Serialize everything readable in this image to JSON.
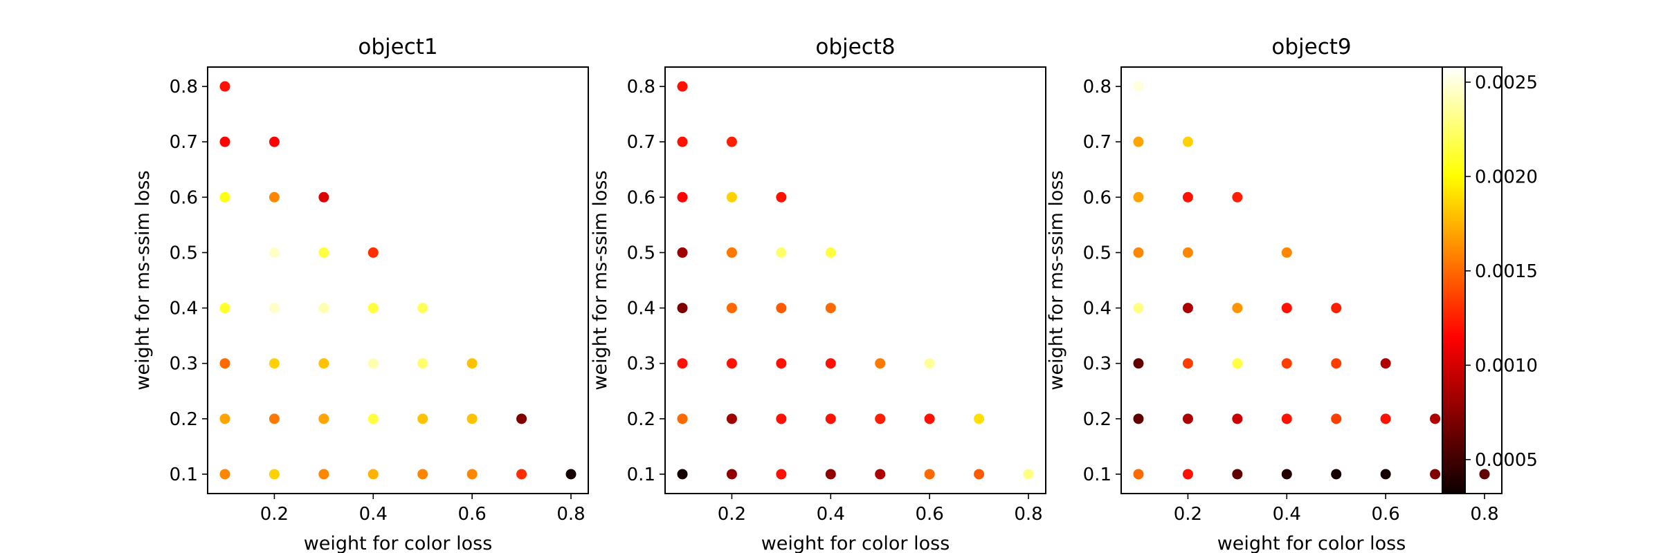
{
  "chart_data": [
    {
      "type": "scatter",
      "title": "object1",
      "xlabel": "weight for color loss",
      "ylabel": "weight for ms-ssim loss",
      "xticks": [
        "0.2",
        "0.4",
        "0.6",
        "0.8"
      ],
      "yticks": [
        "0.1",
        "0.2",
        "0.3",
        "0.4",
        "0.5",
        "0.6",
        "0.7",
        "0.8"
      ],
      "xlim": [
        0.065,
        0.835
      ],
      "ylim": [
        0.065,
        0.835
      ],
      "points": [
        {
          "x": 0.1,
          "y": 0.8,
          "c": 0.0012
        },
        {
          "x": 0.1,
          "y": 0.7,
          "c": 0.00115
        },
        {
          "x": 0.2,
          "y": 0.7,
          "c": 0.00115
        },
        {
          "x": 0.1,
          "y": 0.6,
          "c": 0.00205
        },
        {
          "x": 0.2,
          "y": 0.6,
          "c": 0.0016
        },
        {
          "x": 0.3,
          "y": 0.6,
          "c": 0.001
        },
        {
          "x": 0.2,
          "y": 0.5,
          "c": 0.00245
        },
        {
          "x": 0.3,
          "y": 0.5,
          "c": 0.00215
        },
        {
          "x": 0.4,
          "y": 0.5,
          "c": 0.0013
        },
        {
          "x": 0.1,
          "y": 0.4,
          "c": 0.0021
        },
        {
          "x": 0.2,
          "y": 0.4,
          "c": 0.00245
        },
        {
          "x": 0.3,
          "y": 0.4,
          "c": 0.0024
        },
        {
          "x": 0.4,
          "y": 0.4,
          "c": 0.00215
        },
        {
          "x": 0.5,
          "y": 0.4,
          "c": 0.0022
        },
        {
          "x": 0.1,
          "y": 0.3,
          "c": 0.0015
        },
        {
          "x": 0.2,
          "y": 0.3,
          "c": 0.00185
        },
        {
          "x": 0.3,
          "y": 0.3,
          "c": 0.0018
        },
        {
          "x": 0.4,
          "y": 0.3,
          "c": 0.0024
        },
        {
          "x": 0.5,
          "y": 0.3,
          "c": 0.00225
        },
        {
          "x": 0.6,
          "y": 0.3,
          "c": 0.0018
        },
        {
          "x": 0.1,
          "y": 0.2,
          "c": 0.0017
        },
        {
          "x": 0.2,
          "y": 0.2,
          "c": 0.00155
        },
        {
          "x": 0.3,
          "y": 0.2,
          "c": 0.0017
        },
        {
          "x": 0.4,
          "y": 0.2,
          "c": 0.00215
        },
        {
          "x": 0.5,
          "y": 0.2,
          "c": 0.0018
        },
        {
          "x": 0.6,
          "y": 0.2,
          "c": 0.0018
        },
        {
          "x": 0.7,
          "y": 0.2,
          "c": 0.0007
        },
        {
          "x": 0.1,
          "y": 0.1,
          "c": 0.0016
        },
        {
          "x": 0.2,
          "y": 0.1,
          "c": 0.00185
        },
        {
          "x": 0.3,
          "y": 0.1,
          "c": 0.0016
        },
        {
          "x": 0.4,
          "y": 0.1,
          "c": 0.00175
        },
        {
          "x": 0.5,
          "y": 0.1,
          "c": 0.0016
        },
        {
          "x": 0.6,
          "y": 0.1,
          "c": 0.0016
        },
        {
          "x": 0.7,
          "y": 0.1,
          "c": 0.0013
        },
        {
          "x": 0.8,
          "y": 0.1,
          "c": 0.00035
        }
      ]
    },
    {
      "type": "scatter",
      "title": "object8",
      "xlabel": "weight for color loss",
      "ylabel": "weight for ms-ssim loss",
      "xticks": [
        "0.2",
        "0.4",
        "0.6",
        "0.8"
      ],
      "yticks": [
        "0.1",
        "0.2",
        "0.3",
        "0.4",
        "0.5",
        "0.6",
        "0.7",
        "0.8"
      ],
      "xlim": [
        0.065,
        0.835
      ],
      "ylim": [
        0.065,
        0.835
      ],
      "points": [
        {
          "x": 0.1,
          "y": 0.8,
          "c": 0.0012
        },
        {
          "x": 0.1,
          "y": 0.7,
          "c": 0.0012
        },
        {
          "x": 0.2,
          "y": 0.7,
          "c": 0.00125
        },
        {
          "x": 0.1,
          "y": 0.6,
          "c": 0.00115
        },
        {
          "x": 0.2,
          "y": 0.6,
          "c": 0.00185
        },
        {
          "x": 0.3,
          "y": 0.6,
          "c": 0.0012
        },
        {
          "x": 0.1,
          "y": 0.5,
          "c": 0.0008
        },
        {
          "x": 0.2,
          "y": 0.5,
          "c": 0.00155
        },
        {
          "x": 0.3,
          "y": 0.5,
          "c": 0.00225
        },
        {
          "x": 0.4,
          "y": 0.5,
          "c": 0.00215
        },
        {
          "x": 0.1,
          "y": 0.4,
          "c": 0.0007
        },
        {
          "x": 0.2,
          "y": 0.4,
          "c": 0.0015
        },
        {
          "x": 0.3,
          "y": 0.4,
          "c": 0.00145
        },
        {
          "x": 0.4,
          "y": 0.4,
          "c": 0.0015
        },
        {
          "x": 0.1,
          "y": 0.3,
          "c": 0.0012
        },
        {
          "x": 0.2,
          "y": 0.3,
          "c": 0.0012
        },
        {
          "x": 0.3,
          "y": 0.3,
          "c": 0.0012
        },
        {
          "x": 0.4,
          "y": 0.3,
          "c": 0.0012
        },
        {
          "x": 0.5,
          "y": 0.3,
          "c": 0.00155
        },
        {
          "x": 0.6,
          "y": 0.3,
          "c": 0.00235
        },
        {
          "x": 0.1,
          "y": 0.2,
          "c": 0.0015
        },
        {
          "x": 0.2,
          "y": 0.2,
          "c": 0.0008
        },
        {
          "x": 0.3,
          "y": 0.2,
          "c": 0.0012
        },
        {
          "x": 0.4,
          "y": 0.2,
          "c": 0.0012
        },
        {
          "x": 0.5,
          "y": 0.2,
          "c": 0.00125
        },
        {
          "x": 0.6,
          "y": 0.2,
          "c": 0.0012
        },
        {
          "x": 0.7,
          "y": 0.2,
          "c": 0.0019
        },
        {
          "x": 0.1,
          "y": 0.1,
          "c": 0.00035
        },
        {
          "x": 0.2,
          "y": 0.1,
          "c": 0.00075
        },
        {
          "x": 0.3,
          "y": 0.1,
          "c": 0.0012
        },
        {
          "x": 0.4,
          "y": 0.1,
          "c": 0.00075
        },
        {
          "x": 0.5,
          "y": 0.1,
          "c": 0.00085
        },
        {
          "x": 0.6,
          "y": 0.1,
          "c": 0.0015
        },
        {
          "x": 0.7,
          "y": 0.1,
          "c": 0.00145
        },
        {
          "x": 0.8,
          "y": 0.1,
          "c": 0.0023
        }
      ]
    },
    {
      "type": "scatter",
      "title": "object9",
      "xlabel": "weight for color loss",
      "ylabel": "weight for ms-ssim loss",
      "xticks": [
        "0.2",
        "0.4",
        "0.6",
        "0.8"
      ],
      "yticks": [
        "0.1",
        "0.2",
        "0.3",
        "0.4",
        "0.5",
        "0.6",
        "0.7",
        "0.8"
      ],
      "xlim": [
        0.065,
        0.835
      ],
      "ylim": [
        0.065,
        0.835
      ],
      "points": [
        {
          "x": 0.1,
          "y": 0.8,
          "c": 0.0025
        },
        {
          "x": 0.1,
          "y": 0.7,
          "c": 0.0017
        },
        {
          "x": 0.2,
          "y": 0.7,
          "c": 0.00185
        },
        {
          "x": 0.1,
          "y": 0.6,
          "c": 0.0017
        },
        {
          "x": 0.2,
          "y": 0.6,
          "c": 0.0012
        },
        {
          "x": 0.3,
          "y": 0.6,
          "c": 0.00125
        },
        {
          "x": 0.1,
          "y": 0.5,
          "c": 0.0016
        },
        {
          "x": 0.2,
          "y": 0.5,
          "c": 0.0016
        },
        {
          "x": 0.4,
          "y": 0.5,
          "c": 0.0016
        },
        {
          "x": 0.1,
          "y": 0.4,
          "c": 0.0023
        },
        {
          "x": 0.2,
          "y": 0.4,
          "c": 0.00085
        },
        {
          "x": 0.3,
          "y": 0.4,
          "c": 0.00165
        },
        {
          "x": 0.4,
          "y": 0.4,
          "c": 0.0012
        },
        {
          "x": 0.5,
          "y": 0.4,
          "c": 0.00125
        },
        {
          "x": 0.1,
          "y": 0.3,
          "c": 0.0006
        },
        {
          "x": 0.2,
          "y": 0.3,
          "c": 0.00135
        },
        {
          "x": 0.3,
          "y": 0.3,
          "c": 0.00215
        },
        {
          "x": 0.4,
          "y": 0.3,
          "c": 0.00135
        },
        {
          "x": 0.5,
          "y": 0.3,
          "c": 0.00135
        },
        {
          "x": 0.6,
          "y": 0.3,
          "c": 0.00085
        },
        {
          "x": 0.1,
          "y": 0.2,
          "c": 0.0006
        },
        {
          "x": 0.2,
          "y": 0.2,
          "c": 0.00085
        },
        {
          "x": 0.3,
          "y": 0.2,
          "c": 0.00095
        },
        {
          "x": 0.4,
          "y": 0.2,
          "c": 0.0012
        },
        {
          "x": 0.5,
          "y": 0.2,
          "c": 0.00135
        },
        {
          "x": 0.6,
          "y": 0.2,
          "c": 0.0012
        },
        {
          "x": 0.7,
          "y": 0.2,
          "c": 0.00085
        },
        {
          "x": 0.1,
          "y": 0.1,
          "c": 0.0015
        },
        {
          "x": 0.2,
          "y": 0.1,
          "c": 0.0012
        },
        {
          "x": 0.3,
          "y": 0.1,
          "c": 0.0006
        },
        {
          "x": 0.4,
          "y": 0.1,
          "c": 0.0004
        },
        {
          "x": 0.5,
          "y": 0.1,
          "c": 0.00035
        },
        {
          "x": 0.6,
          "y": 0.1,
          "c": 0.00035
        },
        {
          "x": 0.7,
          "y": 0.1,
          "c": 0.0007
        },
        {
          "x": 0.8,
          "y": 0.1,
          "c": 0.0006
        }
      ]
    }
  ],
  "colorbar": {
    "colormap": "hot",
    "range": [
      0.00032,
      0.00258
    ],
    "ticks": [
      {
        "value": 0.0005,
        "label": "0.0005"
      },
      {
        "value": 0.001,
        "label": "0.0010"
      },
      {
        "value": 0.0015,
        "label": "0.0015"
      },
      {
        "value": 0.002,
        "label": "0.0020"
      },
      {
        "value": 0.0025,
        "label": "0.0025"
      }
    ]
  }
}
